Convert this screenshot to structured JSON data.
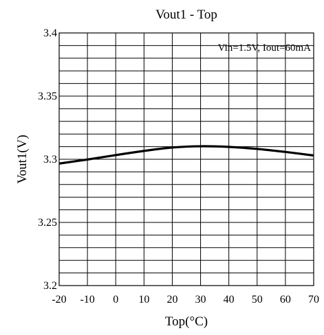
{
  "chart_data": {
    "type": "line",
    "title": "Vout1 - Top",
    "xlabel": "Top(°C)",
    "ylabel": "Vout1(V)",
    "xlim": [
      -20,
      70
    ],
    "ylim": [
      3.2,
      3.4
    ],
    "grid": true,
    "x_major_ticks": [
      -20,
      -10,
      0,
      10,
      20,
      30,
      40,
      50,
      60,
      70
    ],
    "y_major_ticks": [
      3.2,
      3.25,
      3.3,
      3.35,
      3.4
    ],
    "x_tick_labels": [
      "-20",
      "-10",
      "0",
      "10",
      "20",
      "30",
      "40",
      "50",
      "60",
      "70"
    ],
    "y_tick_labels": [
      "3.2",
      "3.25",
      "3.3",
      "3.35",
      "3.4"
    ],
    "y_grid_step": 0.01,
    "annotation": "Vin=1.5V, Iout=60mA",
    "annotation_position": "top-right",
    "series": [
      {
        "x": [
          -20,
          -10,
          0,
          10,
          20,
          30,
          40,
          50,
          60,
          70
        ],
        "values": [
          3.2966,
          3.2998,
          3.3033,
          3.3066,
          3.3093,
          3.3103,
          3.3098,
          3.3082,
          3.3058,
          3.303
        ],
        "color": "#000000"
      }
    ]
  }
}
